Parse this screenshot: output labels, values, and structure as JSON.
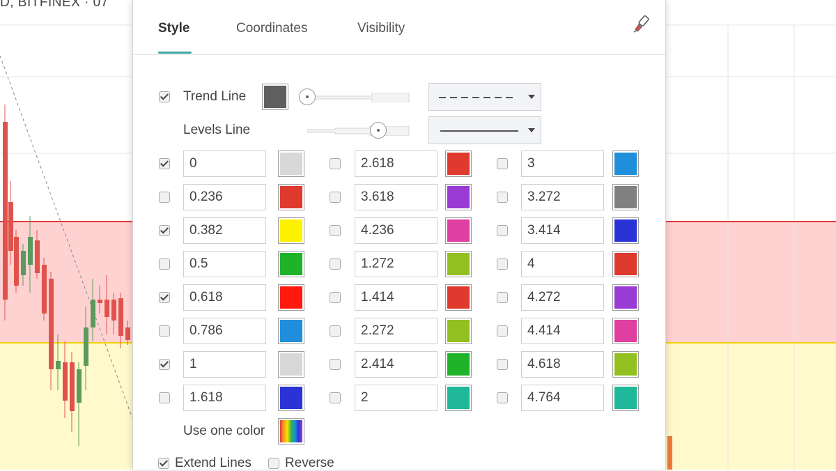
{
  "symbol_title": "D, BITFINEX · 07",
  "dialog": {
    "tabs": [
      {
        "label": "Style",
        "active": true
      },
      {
        "label": "Coordinates",
        "active": false
      },
      {
        "label": "Visibility",
        "active": false
      }
    ],
    "trend_line": {
      "label": "Trend Line",
      "checked": true,
      "color": "#5f5f5f",
      "width_level": 0.0,
      "style": "dashed"
    },
    "levels_line": {
      "label": "Levels Line",
      "width_level": 0.75,
      "style": "solid"
    },
    "levels": [
      [
        {
          "value": "0",
          "checked": true,
          "color": "#d8d8d8"
        },
        {
          "value": "0.236",
          "checked": false,
          "color": "#e03a2e"
        },
        {
          "value": "0.382",
          "checked": true,
          "color": "#fff200"
        },
        {
          "value": "0.5",
          "checked": false,
          "color": "#1fb32a"
        },
        {
          "value": "0.618",
          "checked": true,
          "color": "#ff1a10"
        },
        {
          "value": "0.786",
          "checked": false,
          "color": "#1f8fdb"
        },
        {
          "value": "1",
          "checked": true,
          "color": "#d8d8d8"
        },
        {
          "value": "1.618",
          "checked": false,
          "color": "#2a34d6"
        }
      ],
      [
        {
          "value": "2.618",
          "checked": false,
          "color": "#e03a2e"
        },
        {
          "value": "3.618",
          "checked": false,
          "color": "#9b3bd6"
        },
        {
          "value": "4.236",
          "checked": false,
          "color": "#de3fa0"
        },
        {
          "value": "1.272",
          "checked": false,
          "color": "#93c021"
        },
        {
          "value": "1.414",
          "checked": false,
          "color": "#e03a2e"
        },
        {
          "value": "2.272",
          "checked": false,
          "color": "#93c021"
        },
        {
          "value": "2.414",
          "checked": false,
          "color": "#1fb32a"
        },
        {
          "value": "2",
          "checked": false,
          "color": "#1fb89a"
        }
      ],
      [
        {
          "value": "3",
          "checked": false,
          "color": "#1f8fdb"
        },
        {
          "value": "3.272",
          "checked": false,
          "color": "#808080"
        },
        {
          "value": "3.414",
          "checked": false,
          "color": "#2a34d6"
        },
        {
          "value": "4",
          "checked": false,
          "color": "#e03a2e"
        },
        {
          "value": "4.272",
          "checked": false,
          "color": "#9b3bd6"
        },
        {
          "value": "4.414",
          "checked": false,
          "color": "#de3fa0"
        },
        {
          "value": "4.618",
          "checked": false,
          "color": "#93c021"
        },
        {
          "value": "4.764",
          "checked": false,
          "color": "#1fb89a"
        }
      ]
    ],
    "use_one_color": {
      "label": "Use one color"
    },
    "extend_lines": {
      "label": "Extend Lines",
      "checked": true
    },
    "reverse": {
      "label": "Reverse",
      "checked": false
    }
  },
  "colors": {
    "accent": "#3ba8a0",
    "zone_red": "#ffd2d2",
    "zone_yellow": "#fff9cc",
    "level_red_line": "#e53935",
    "level_yellow_line": "#f2d100",
    "candle_up": "#5a9a5c",
    "candle_down": "#e0534c"
  }
}
